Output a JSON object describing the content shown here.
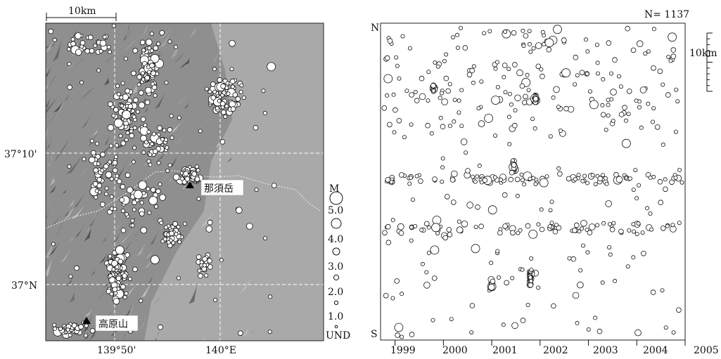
{
  "colors": {
    "map_terrain": "#8c8c8c",
    "map_dark": "#3a3a3a",
    "map_light": "#c9c9c9",
    "quake_fill_map": "#ffffff",
    "quake_stroke": "#111111",
    "quake_fill_timeline": "#ffffff",
    "grid_line": "#ffffff"
  },
  "map": {
    "scale_label": "10km",
    "lat_labels": [
      "37°10'",
      "37°N"
    ],
    "lon_labels": [
      "139°50'",
      "140°E"
    ],
    "places": [
      {
        "name": "那須岳",
        "symbol": "triangle"
      },
      {
        "name": "高原山",
        "symbol": "triangle"
      }
    ],
    "legend": {
      "title": "M",
      "items": [
        "5.0",
        "4.0",
        "3.0",
        "2.0",
        "1.0",
        "UND"
      ]
    }
  },
  "timeline": {
    "count_label": "N= 1137",
    "north_label": "N",
    "south_label": "S",
    "scale_label": "10km",
    "years": [
      "1999",
      "2000",
      "2001",
      "2002",
      "2003",
      "2004",
      "2005"
    ]
  },
  "chart_data": [
    {
      "type": "scatter",
      "title": "",
      "description_of_axes": "map of epicenters",
      "xlabel": "",
      "ylabel": "",
      "x_ticks": [
        "139°50'",
        "140°E"
      ],
      "y_ticks": [
        "37°10'",
        "37°N"
      ],
      "legend_title": "M",
      "legend_entries": [
        "5.0",
        "4.0",
        "3.0",
        "2.0",
        "1.0",
        "UND"
      ],
      "annotations": [
        "那須岳",
        "高原山",
        "10km"
      ],
      "clusters": [
        {
          "near": "那須岳",
          "relative_density": "high"
        },
        {
          "near": "高原山",
          "relative_density": "medium"
        },
        {
          "near": "139°50' / 37°N",
          "relative_density": "high"
        }
      ]
    },
    {
      "type": "scatter",
      "title": "",
      "xlabel": "",
      "ylabel": "",
      "x_ticks": [
        "1999",
        "2000",
        "2001",
        "2002",
        "2003",
        "2004",
        "2005"
      ],
      "xlim": [
        1998.7,
        2005.0
      ],
      "y_ends": [
        "N",
        "S"
      ],
      "annotations": [
        "N= 1137",
        "10km"
      ],
      "total_events": 1137,
      "clusters": [
        {
          "year": 2001.9,
          "position": "upper",
          "relative_density": "high"
        },
        {
          "year": 2001.4,
          "position": "middle",
          "relative_density": "high"
        },
        {
          "year": 2001.8,
          "position": "lower",
          "relative_density": "high"
        },
        {
          "year": 2001.0,
          "position": "lower",
          "relative_density": "medium"
        },
        {
          "year": 1999.8,
          "position": "upper",
          "relative_density": "medium"
        }
      ]
    }
  ]
}
